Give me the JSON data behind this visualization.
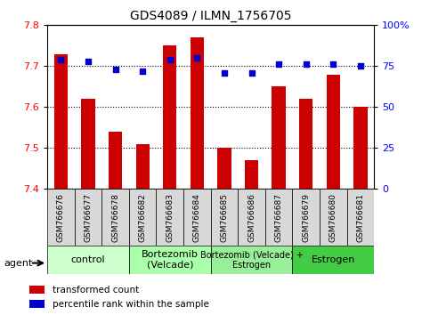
{
  "title": "GDS4089 / ILMN_1756705",
  "samples": [
    "GSM766676",
    "GSM766677",
    "GSM766678",
    "GSM766682",
    "GSM766683",
    "GSM766684",
    "GSM766685",
    "GSM766686",
    "GSM766687",
    "GSM766679",
    "GSM766680",
    "GSM766681"
  ],
  "bar_values": [
    7.73,
    7.62,
    7.54,
    7.51,
    7.75,
    7.77,
    7.5,
    7.47,
    7.65,
    7.62,
    7.68,
    7.6
  ],
  "dot_values": [
    79,
    78,
    73,
    72,
    79,
    80,
    71,
    71,
    76,
    76,
    76,
    75
  ],
  "ylim_left": [
    7.4,
    7.8
  ],
  "ylim_right": [
    0,
    100
  ],
  "yticks_left": [
    7.4,
    7.5,
    7.6,
    7.7,
    7.8
  ],
  "yticks_right": [
    0,
    25,
    50,
    75,
    100
  ],
  "groups": [
    {
      "label": "control",
      "start": 0,
      "end": 3,
      "color": "#ccffcc"
    },
    {
      "label": "Bortezomib\n(Velcade)",
      "start": 3,
      "end": 6,
      "color": "#aaffaa"
    },
    {
      "label": "Bortezomib (Velcade) +\nEstrogen",
      "start": 6,
      "end": 9,
      "color": "#99ee99"
    },
    {
      "label": "Estrogen",
      "start": 9,
      "end": 12,
      "color": "#44cc44"
    }
  ],
  "bar_color": "#cc0000",
  "dot_color": "#0000cc",
  "bar_bottom": 7.4,
  "legend_items": [
    {
      "color": "#cc0000",
      "label": "transformed count"
    },
    {
      "color": "#0000cc",
      "label": "percentile rank within the sample"
    }
  ],
  "agent_label": "agent"
}
